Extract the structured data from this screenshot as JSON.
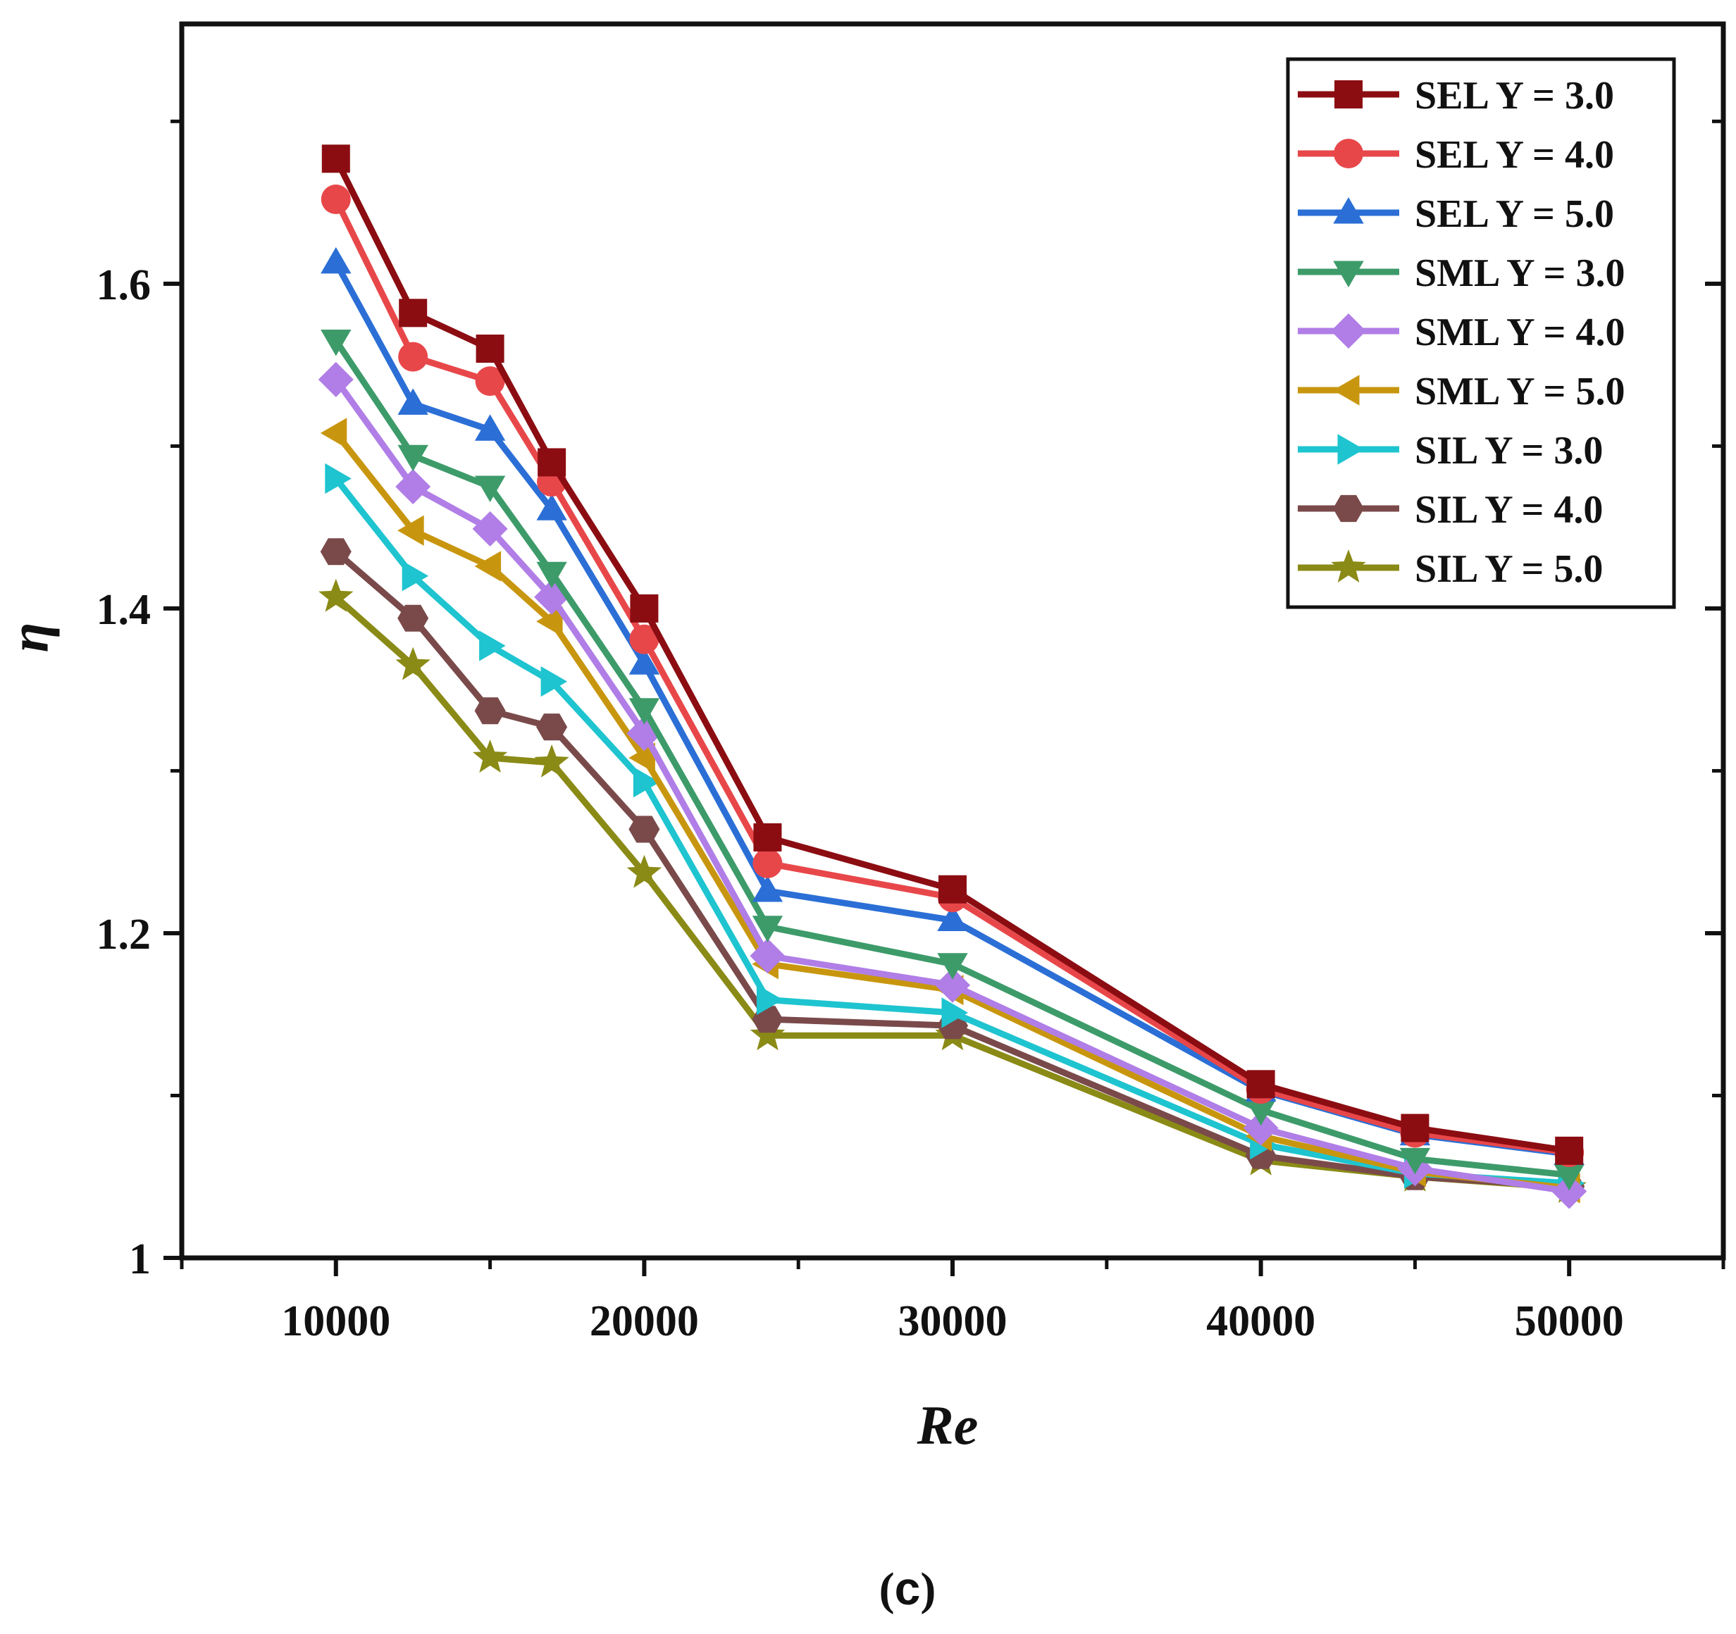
{
  "chart_data": {
    "type": "line",
    "title": "",
    "xlabel": "Re",
    "ylabel": "η",
    "xlim": [
      5000,
      55000
    ],
    "ylim": [
      1.0,
      1.76
    ],
    "xticks": [
      10000,
      20000,
      30000,
      40000,
      50000
    ],
    "xtick_labels": [
      "10000",
      "20000",
      "30000",
      "40000",
      "50000"
    ],
    "yticks": [
      1.0,
      1.2,
      1.4,
      1.6
    ],
    "ytick_labels": [
      "1",
      "1.2",
      "1.4",
      "1.6"
    ],
    "legend_position": "top-right",
    "caption_parts": [
      "(",
      "c",
      ")"
    ],
    "x": [
      10000,
      12500,
      15000,
      17000,
      20000,
      24000,
      30000,
      40000,
      45000,
      50000
    ],
    "series": [
      {
        "name": "SEL Y = 3.0",
        "color": "#8b0d12",
        "marker": "square",
        "values": [
          1.677,
          1.582,
          1.56,
          1.49,
          1.4,
          1.259,
          1.227,
          1.107,
          1.08,
          1.066
        ]
      },
      {
        "name": "SEL Y = 4.0",
        "color": "#e8474a",
        "marker": "circle",
        "values": [
          1.652,
          1.555,
          1.54,
          1.478,
          1.381,
          1.243,
          1.222,
          1.104,
          1.077,
          1.065
        ]
      },
      {
        "name": "SEL Y = 5.0",
        "color": "#2b6fd6",
        "marker": "triangle-up",
        "values": [
          1.613,
          1.526,
          1.51,
          1.461,
          1.366,
          1.226,
          1.208,
          1.103,
          1.076,
          1.064
        ]
      },
      {
        "name": "SML Y = 3.0",
        "color": "#3d9b6a",
        "marker": "triangle-down",
        "values": [
          1.565,
          1.494,
          1.475,
          1.422,
          1.338,
          1.204,
          1.181,
          1.091,
          1.061,
          1.051
        ]
      },
      {
        "name": "SML Y = 4.0",
        "color": "#b07ee6",
        "marker": "diamond",
        "values": [
          1.541,
          1.475,
          1.449,
          1.407,
          1.323,
          1.186,
          1.168,
          1.08,
          1.055,
          1.041
        ]
      },
      {
        "name": "SML Y = 5.0",
        "color": "#c8960e",
        "marker": "triangle-left",
        "values": [
          1.508,
          1.448,
          1.426,
          1.392,
          1.308,
          1.181,
          1.165,
          1.075,
          1.053,
          1.043
        ]
      },
      {
        "name": "SIL Y = 3.0",
        "color": "#1ec4cf",
        "marker": "triangle-right",
        "values": [
          1.48,
          1.42,
          1.377,
          1.355,
          1.293,
          1.159,
          1.151,
          1.07,
          1.052,
          1.046
        ]
      },
      {
        "name": "SIL Y = 4.0",
        "color": "#7a4a4a",
        "marker": "hexagon",
        "values": [
          1.435,
          1.394,
          1.337,
          1.327,
          1.264,
          1.147,
          1.143,
          1.063,
          1.05,
          1.044
        ]
      },
      {
        "name": "SIL Y = 5.0",
        "color": "#8a8a16",
        "marker": "star",
        "values": [
          1.407,
          1.365,
          1.308,
          1.305,
          1.237,
          1.137,
          1.137,
          1.06,
          1.05,
          1.043
        ]
      }
    ]
  }
}
